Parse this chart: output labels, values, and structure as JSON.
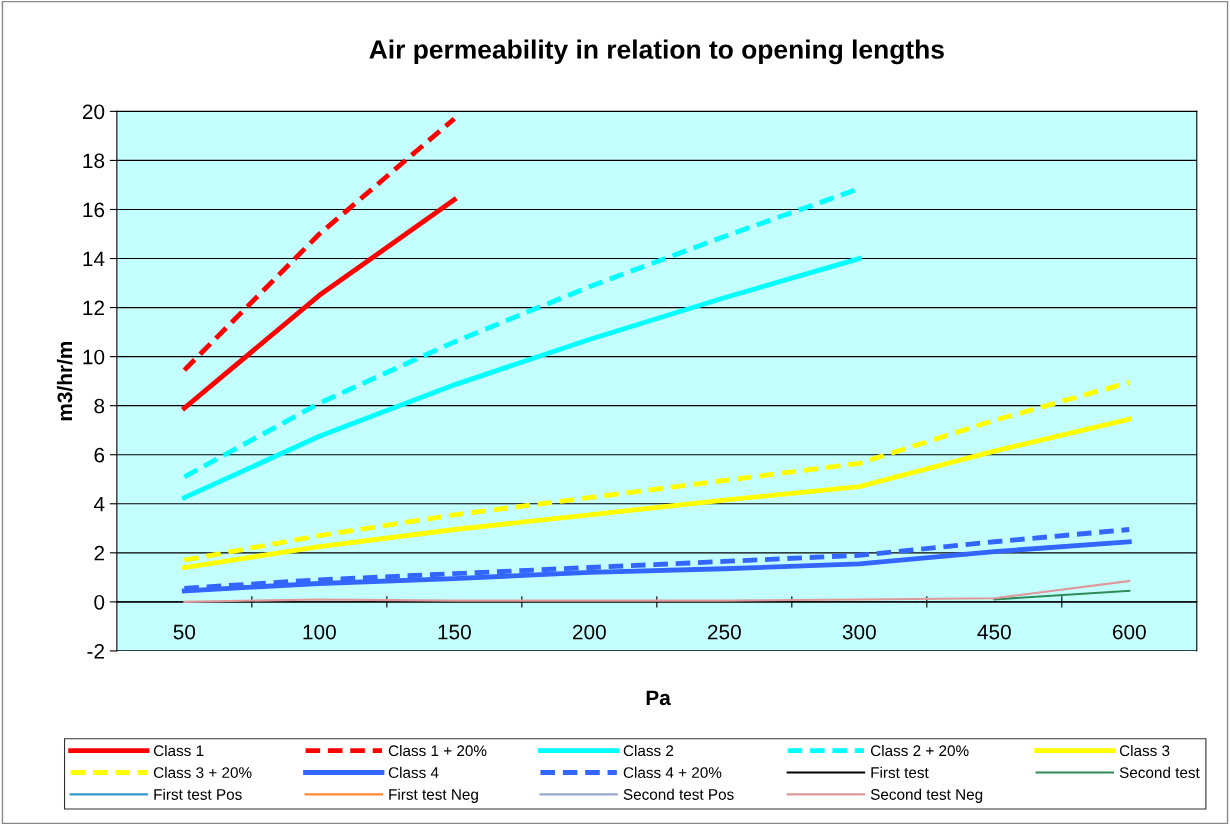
{
  "chart_data": {
    "type": "line",
    "title": "Air permeability in relation to opening lengths",
    "xlabel": "Pa",
    "ylabel": "m3/hr/m",
    "categories": [
      "50",
      "100",
      "150",
      "200",
      "250",
      "300",
      "450",
      "600"
    ],
    "ylim": [
      -2,
      20
    ],
    "yticks": [
      -2,
      0,
      2,
      4,
      6,
      8,
      10,
      12,
      14,
      16,
      18,
      20
    ],
    "grid": "y",
    "legend": "bottom",
    "marker": "none",
    "series": [
      {
        "name": "Class 1",
        "color": "#ff0000",
        "line_style": "solid",
        "values": [
          7.9,
          12.5,
          16.4,
          null,
          null,
          null,
          null,
          null
        ]
      },
      {
        "name": "Class 1 + 20%",
        "color": "#ff0000",
        "line_style": "dashed",
        "values": [
          9.45,
          15.0,
          19.7,
          null,
          null,
          null,
          null,
          null
        ]
      },
      {
        "name": "Class 2",
        "color": "#00ffff",
        "line_style": "solid",
        "values": [
          4.25,
          6.75,
          8.85,
          10.7,
          12.4,
          14.0,
          null,
          null
        ]
      },
      {
        "name": "Class 2 + 20%",
        "color": "#00ffff",
        "line_style": "dashed",
        "values": [
          5.1,
          8.1,
          10.6,
          12.85,
          14.9,
          16.85,
          null,
          null
        ]
      },
      {
        "name": "Class 3",
        "color": "#ffff00",
        "line_style": "solid",
        "values": [
          1.4,
          2.25,
          2.95,
          3.55,
          4.15,
          4.7,
          6.15,
          7.45
        ]
      },
      {
        "name": "Class 3 + 20%",
        "color": "#ffff00",
        "line_style": "dashed",
        "values": [
          1.7,
          2.7,
          3.55,
          4.25,
          4.95,
          5.65,
          7.4,
          8.95
        ]
      },
      {
        "name": "Class 4",
        "color": "#3366ff",
        "line_style": "solid",
        "values": [
          0.45,
          0.75,
          0.95,
          1.2,
          1.35,
          1.55,
          2.05,
          2.45
        ]
      },
      {
        "name": "Class 4 + 20%",
        "color": "#3366ff",
        "line_style": "dashed",
        "values": [
          0.55,
          0.9,
          1.15,
          1.4,
          1.65,
          1.9,
          2.45,
          2.95
        ]
      },
      {
        "name": "First test",
        "color": "#000000",
        "line_style": "solid",
        "values": [
          null,
          null,
          null,
          null,
          null,
          null,
          null,
          null
        ]
      },
      {
        "name": "Second test",
        "color": "#2e8b57",
        "line_style": "solid",
        "values": [
          null,
          null,
          null,
          null,
          null,
          null,
          0.1,
          0.45
        ]
      },
      {
        "name": "First test Pos",
        "color": "#3399cc",
        "line_style": "solid",
        "values": [
          null,
          null,
          null,
          null,
          null,
          null,
          null,
          null
        ]
      },
      {
        "name": "First test Neg",
        "color": "#ff8833",
        "line_style": "solid",
        "values": [
          null,
          null,
          null,
          null,
          null,
          null,
          null,
          null
        ]
      },
      {
        "name": "Second test Pos",
        "color": "#99aacc",
        "line_style": "solid",
        "values": [
          null,
          null,
          null,
          null,
          null,
          null,
          null,
          null
        ]
      },
      {
        "name": "Second test Neg",
        "color": "#dd9999",
        "line_style": "solid",
        "values": [
          0,
          0.1,
          0.05,
          0.05,
          0.05,
          0.1,
          0.15,
          0.85
        ]
      }
    ]
  }
}
